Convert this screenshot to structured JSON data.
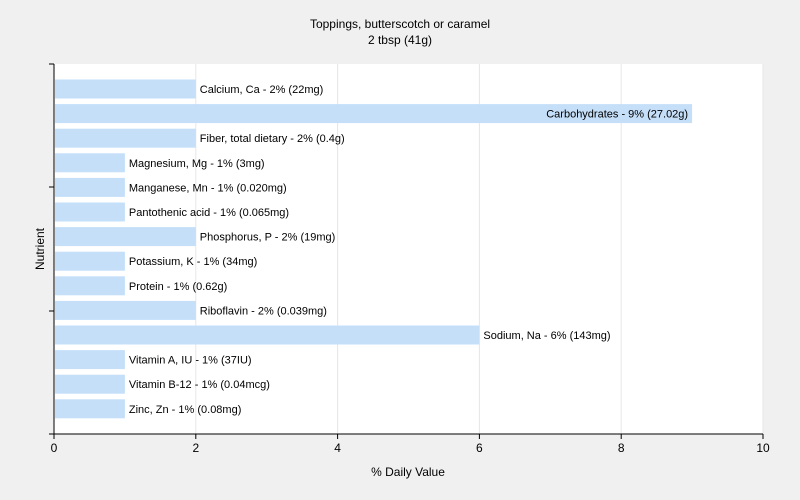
{
  "colors": {
    "background": "#f0f0f0",
    "plot_background": "#ffffff",
    "bar": "#c5dff9",
    "grid": "#e6e6e6",
    "axis": "#000000"
  },
  "chart_data": {
    "type": "bar",
    "orientation": "horizontal",
    "title": "Toppings, butterscotch or caramel",
    "subtitle": "2 tbsp (41g)",
    "xlabel": "% Daily Value",
    "ylabel": "Nutrient",
    "xlim": [
      0,
      10
    ],
    "xticks": [
      0,
      2,
      4,
      6,
      8,
      10
    ],
    "grid": true,
    "legend": "none",
    "categories": [
      "Calcium, Ca",
      "Carbohydrates",
      "Fiber, total dietary",
      "Magnesium, Mg",
      "Manganese, Mn",
      "Pantothenic acid",
      "Phosphorus, P",
      "Potassium, K",
      "Protein",
      "Riboflavin",
      "Sodium, Na",
      "Vitamin A, IU",
      "Vitamin B-12",
      "Zinc, Zn"
    ],
    "values": [
      2,
      9,
      2,
      1,
      1,
      1,
      2,
      1,
      1,
      2,
      6,
      1,
      1,
      1
    ],
    "data_labels": [
      "Calcium, Ca - 2% (22mg)",
      "Carbohydrates - 9% (27.02g)",
      "Fiber, total dietary - 2% (0.4g)",
      "Magnesium, Mg - 1% (3mg)",
      "Manganese, Mn - 1% (0.020mg)",
      "Pantothenic acid - 1% (0.065mg)",
      "Phosphorus, P - 2% (19mg)",
      "Potassium, K - 1% (34mg)",
      "Protein - 1% (0.62g)",
      "Riboflavin - 2% (0.039mg)",
      "Sodium, Na - 6% (143mg)",
      "Vitamin A, IU - 1% (37IU)",
      "Vitamin B-12 - 1% (0.04mcg)",
      "Zinc, Zn - 1% (0.08mg)"
    ]
  }
}
